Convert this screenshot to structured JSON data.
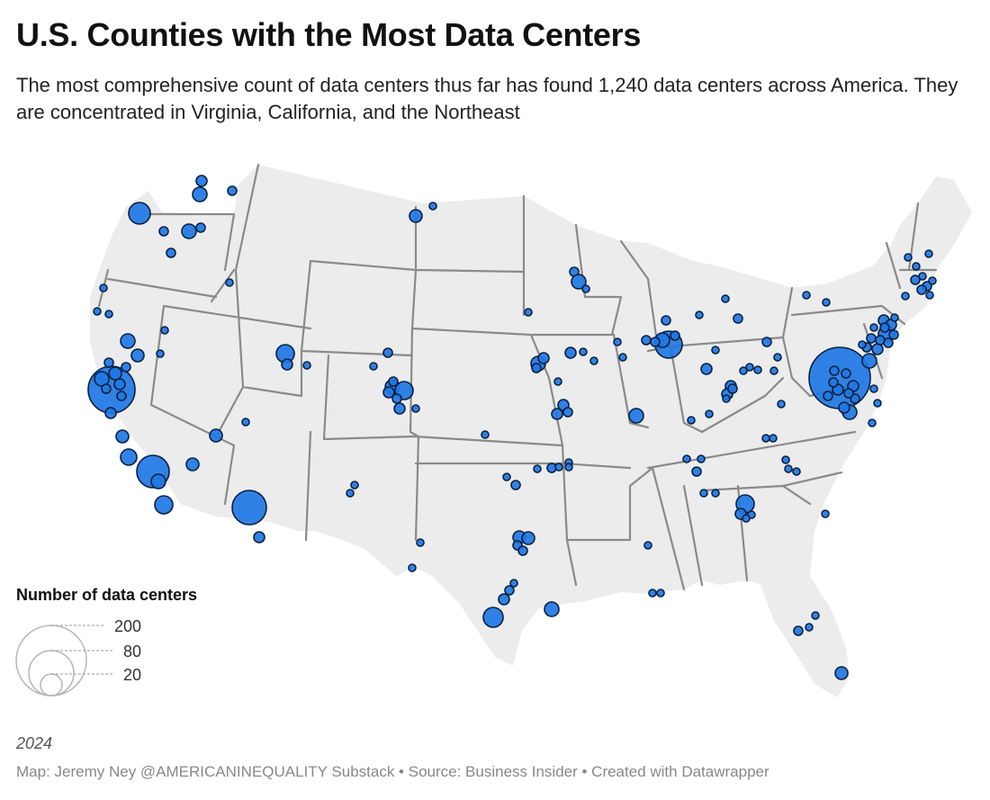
{
  "title": "U.S. Counties with the Most Data Centers",
  "subtitle": "The most comprehensive count of data centers thus far has found 1,240 data centers across America. They are concentrated in Virginia, California, and the Northeast",
  "legend": {
    "title": "Number of data centers",
    "values": [
      200,
      80,
      20
    ]
  },
  "year": "2024",
  "footer": "Map: Jeremy Ney @AMERICANINEQUALITY Substack • Source: Business Insider • Created with Datawrapper",
  "colors": {
    "bubble": "#1f77e4",
    "bubble_outline": "#0a2040",
    "land": "#ececec",
    "state_border": "#8a8a8a"
  }
}
